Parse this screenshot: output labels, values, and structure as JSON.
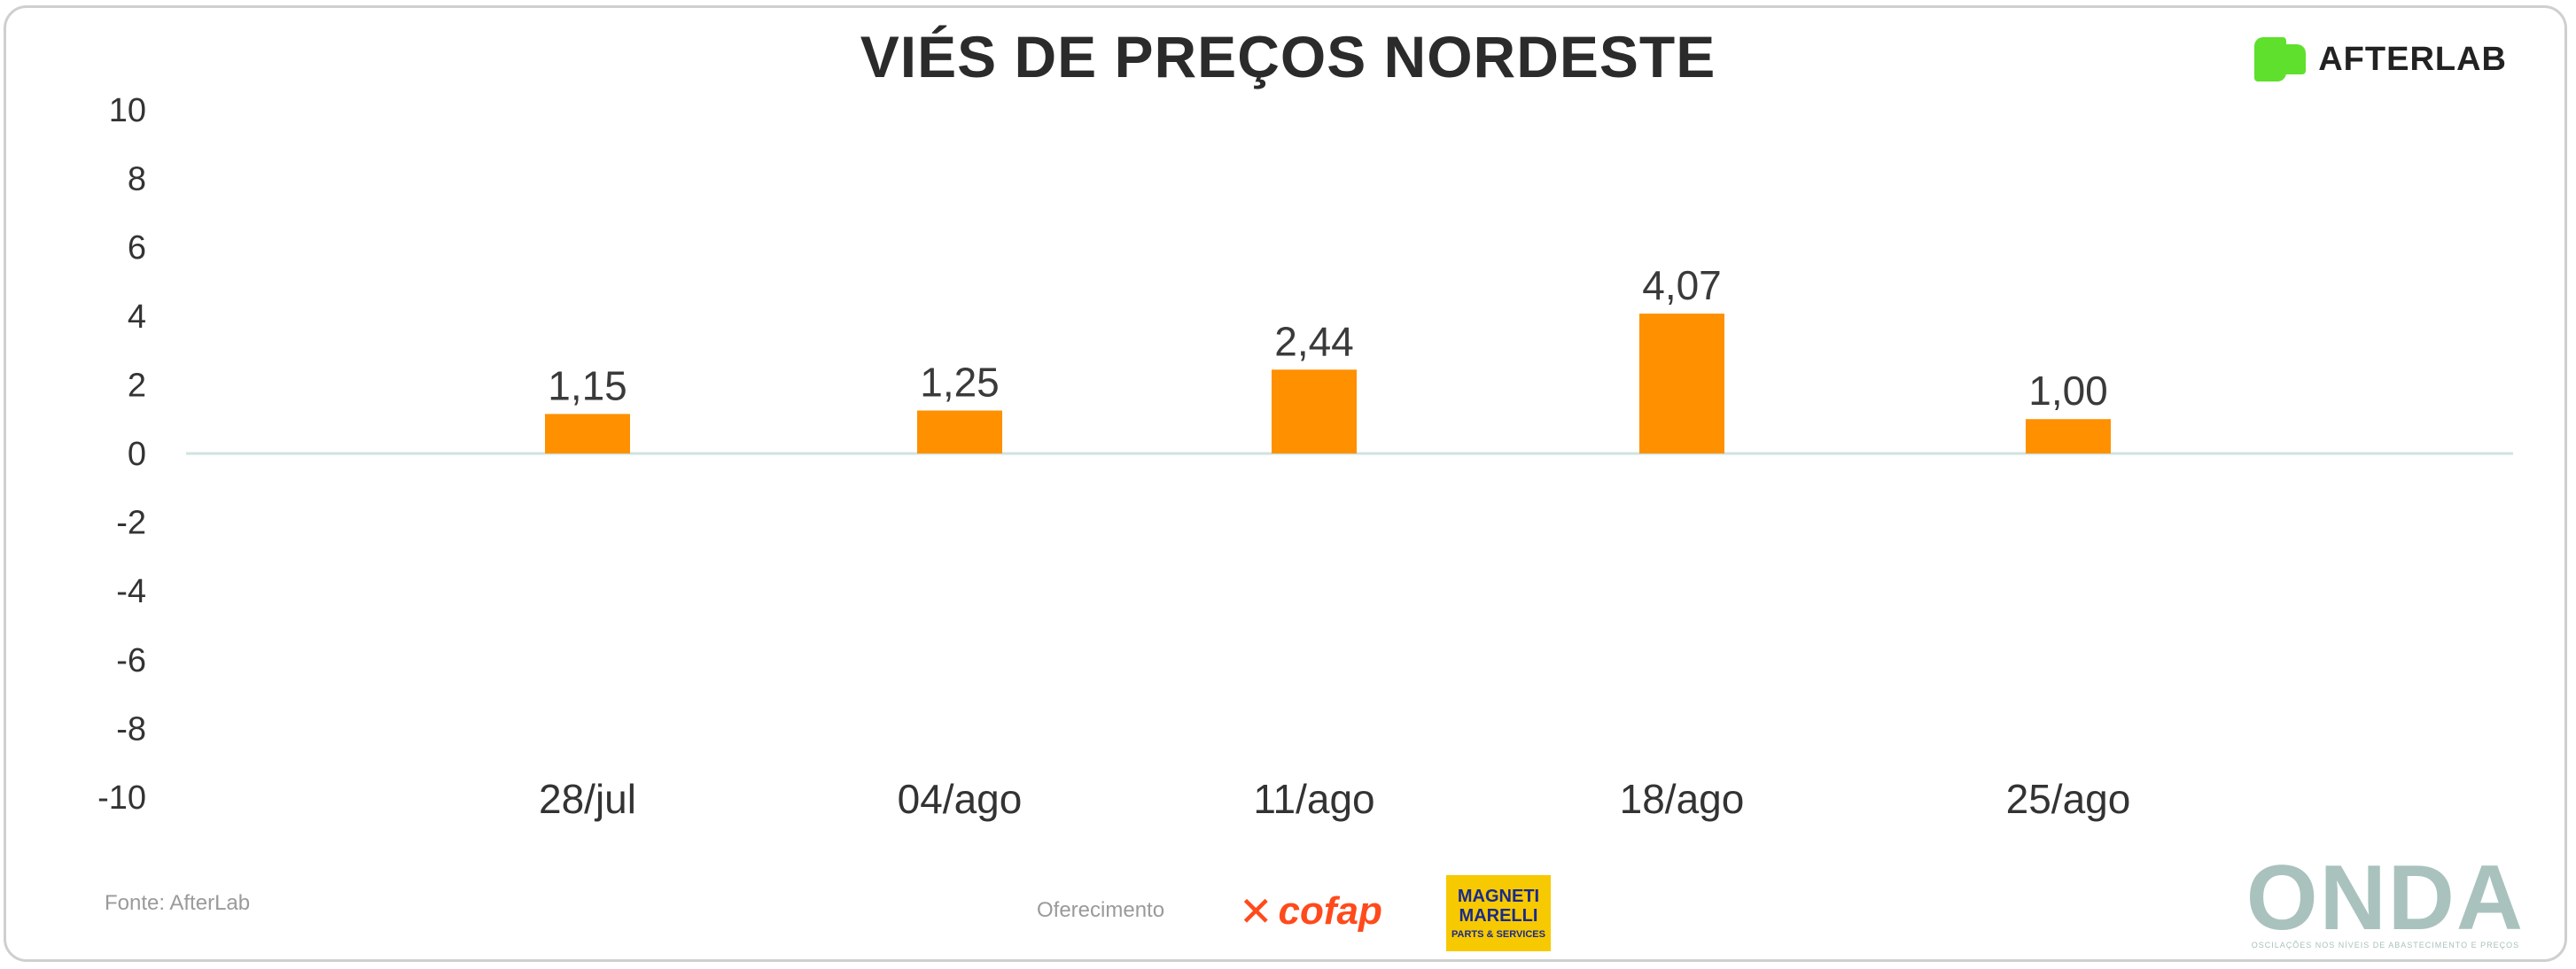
{
  "title": "VIÉS DE PREÇOS NORDESTE",
  "brand": {
    "name": "AFTERLAB",
    "accent": "#5ee02c"
  },
  "source_text": "Fonte: AfterLab",
  "sponsor_text": "Oferecimento",
  "sponsors": {
    "cofap": "cofap",
    "magneti_line1": "MAGNETI",
    "magneti_line2": "MARELLI",
    "magneti_sub": "PARTS & SERVICES"
  },
  "onda": {
    "word": "ONDA",
    "sub": "OSCILAÇÕES NOS NÍVEIS DE ABASTECIMENTO E PREÇOS"
  },
  "chart_data": {
    "type": "bar",
    "title": "VIÉS DE PREÇOS NORDESTE",
    "categories": [
      "28/jul",
      "04/ago",
      "11/ago",
      "18/ago",
      "25/ago"
    ],
    "values": [
      1.15,
      1.25,
      2.44,
      4.07,
      1.0
    ],
    "value_labels": [
      "1,15",
      "1,25",
      "2,44",
      "4,07",
      "1,00"
    ],
    "ylim": [
      -10,
      10
    ],
    "yticks": [
      10,
      8,
      6,
      4,
      2,
      0,
      -2,
      -4,
      -6,
      -8,
      -10
    ],
    "bar_color": "#ff9000",
    "zero_line_color": "#cfe3e0",
    "grid": false,
    "legend": "none"
  }
}
